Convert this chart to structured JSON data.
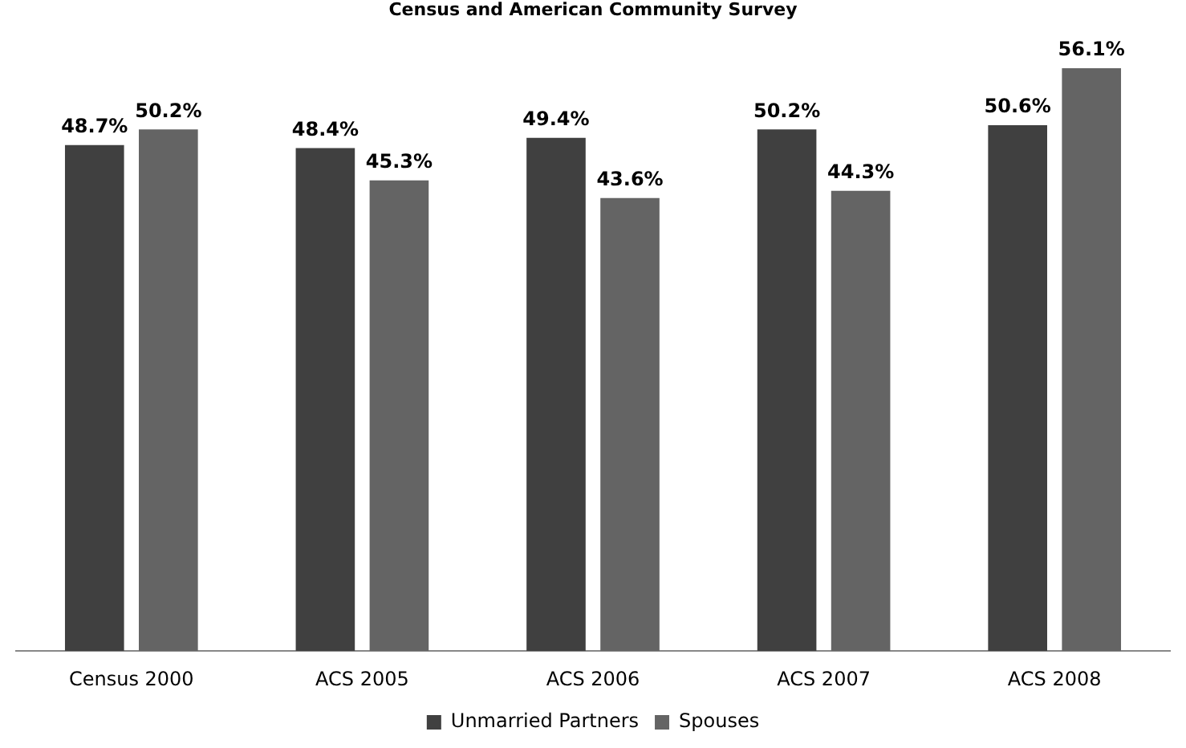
{
  "chart_data": {
    "type": "bar",
    "title": "Census and American Community Survey",
    "categories": [
      "Census 2000",
      "ACS 2005",
      "ACS 2006",
      "ACS 2007",
      "ACS 2008"
    ],
    "series": [
      {
        "name": "Unmarried Partners",
        "color": "#404040",
        "values": [
          48.7,
          48.4,
          49.4,
          50.2,
          50.6
        ],
        "value_labels": [
          "48.7%",
          "48.4%",
          "49.4%",
          "50.2%",
          "50.6%"
        ]
      },
      {
        "name": "Spouses",
        "color": "#646464",
        "values": [
          50.2,
          45.3,
          43.6,
          44.3,
          56.1
        ],
        "value_labels": [
          "50.2%",
          "45.3%",
          "43.6%",
          "44.3%",
          "56.1%"
        ]
      }
    ],
    "legend": "bottom",
    "grid": false
  }
}
